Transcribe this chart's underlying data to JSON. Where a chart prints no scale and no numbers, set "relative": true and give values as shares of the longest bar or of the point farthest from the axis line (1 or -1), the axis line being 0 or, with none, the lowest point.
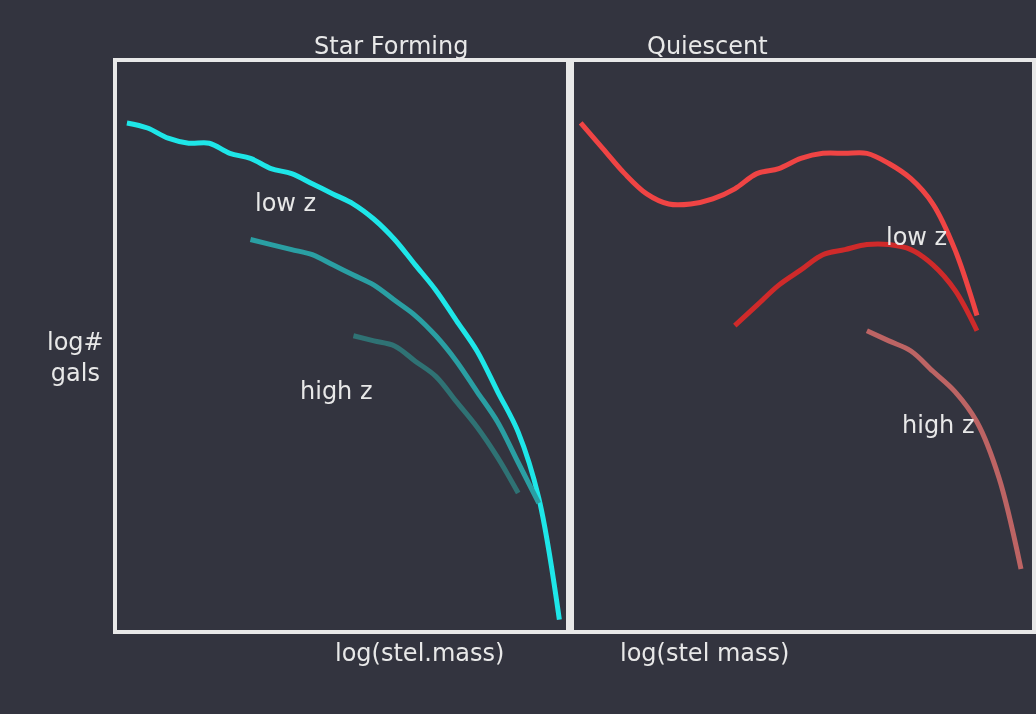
{
  "chart_data": [
    {
      "type": "line",
      "relative": true,
      "title": "Star Forming",
      "xlabel": "log(stel.mass)",
      "ylabel": "log#\ngals",
      "annotations": [
        "low z",
        "high z"
      ],
      "categories": [
        null,
        null,
        null,
        null,
        null,
        null,
        null,
        null,
        null,
        null,
        null,
        null,
        null,
        null,
        null,
        null,
        null,
        null,
        null,
        null,
        null,
        null
      ],
      "series": [
        {
          "color": "#1ee6e8",
          "values": [
            1.0,
            0.99,
            0.97,
            0.96,
            0.96,
            0.94,
            0.93,
            0.91,
            0.9,
            0.88,
            0.86,
            0.84,
            0.81,
            0.77,
            0.72,
            0.67,
            0.61,
            0.55,
            0.47,
            0.39,
            0.26,
            0.02
          ]
        },
        {
          "color": "#2a9fa3",
          "values": [
            null,
            null,
            null,
            null,
            null,
            null,
            0.77,
            0.76,
            0.75,
            0.74,
            0.72,
            0.7,
            0.68,
            0.65,
            0.62,
            0.58,
            0.53,
            0.47,
            0.41,
            0.33,
            0.25,
            null
          ]
        },
        {
          "color": "#2f7274",
          "values": [
            null,
            null,
            null,
            null,
            null,
            null,
            null,
            null,
            null,
            null,
            null,
            0.58,
            0.57,
            0.56,
            0.53,
            0.5,
            0.45,
            0.4,
            0.34,
            0.27,
            null,
            null
          ]
        }
      ]
    },
    {
      "type": "line",
      "relative": true,
      "title": "Quiescent",
      "xlabel": "log(stel mass)",
      "annotations": [
        "low z",
        "high z"
      ],
      "categories": [
        null,
        null,
        null,
        null,
        null,
        null,
        null,
        null,
        null,
        null,
        null,
        null,
        null,
        null,
        null,
        null,
        null,
        null,
        null,
        null,
        null
      ],
      "series": [
        {
          "color": "#ef4444",
          "values": [
            1.0,
            0.95,
            0.9,
            0.86,
            0.84,
            0.84,
            0.85,
            0.87,
            0.9,
            0.91,
            0.93,
            0.94,
            0.94,
            0.94,
            0.92,
            0.89,
            0.84,
            0.75,
            0.62,
            null,
            null
          ]
        },
        {
          "color": "#cf2a2a",
          "values": [
            null,
            null,
            null,
            null,
            null,
            null,
            null,
            0.6,
            0.64,
            0.68,
            0.71,
            0.74,
            0.75,
            0.76,
            0.76,
            0.75,
            0.72,
            0.67,
            0.59,
            null,
            null
          ]
        },
        {
          "color": "#bd6464",
          "values": [
            null,
            null,
            null,
            null,
            null,
            null,
            null,
            null,
            null,
            null,
            null,
            null,
            null,
            0.59,
            0.57,
            0.55,
            0.51,
            0.47,
            0.41,
            0.3,
            0.12
          ]
        }
      ]
    }
  ]
}
